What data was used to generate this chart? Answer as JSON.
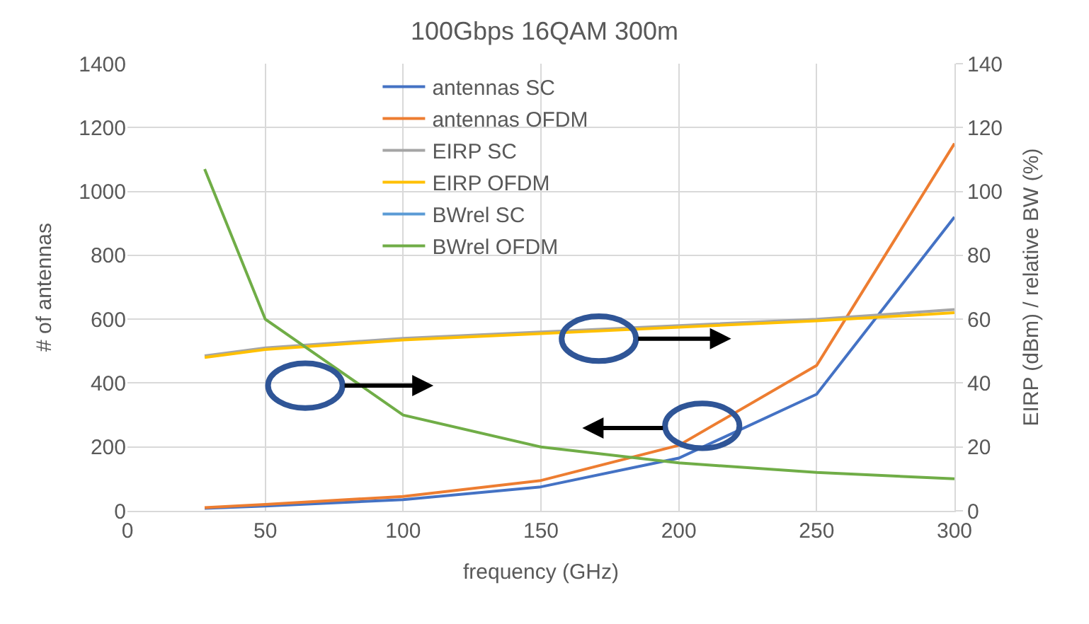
{
  "chart_data": {
    "type": "line",
    "title": "100Gbps 16QAM 300m",
    "xlabel": "frequency (GHz)",
    "ylabel": "# of antennas",
    "y2label": "EIRP (dBm) / relative BW (%)",
    "x": [
      28,
      50,
      100,
      150,
      200,
      250,
      300
    ],
    "series": [
      {
        "name": "antennas SC",
        "color": "#4472c4",
        "values": [
          8,
          15,
          35,
          75,
          165,
          365,
          920
        ]
      },
      {
        "name": "antennas OFDM",
        "color": "#ed7d31",
        "values": [
          10,
          20,
          45,
          95,
          205,
          455,
          1150
        ]
      },
      {
        "name": "EIRP SC",
        "color": "#a5a5a5",
        "axis": "y2",
        "values": [
          48.5,
          51,
          54,
          56,
          58,
          60,
          63
        ]
      },
      {
        "name": "EIRP OFDM",
        "color": "#ffc000",
        "axis": "y2",
        "values": [
          48,
          50.5,
          53.5,
          55.5,
          57.5,
          59.5,
          62
        ]
      },
      {
        "name": "BWrel SC",
        "color": "#5b9bd5",
        "axis": "y2",
        "values": [
          null,
          null,
          null,
          null,
          null,
          null,
          null
        ]
      },
      {
        "name": "BWrel OFDM",
        "color": "#70ad47",
        "axis": "y2",
        "values": [
          107,
          60,
          30,
          20,
          15,
          12,
          10
        ]
      }
    ],
    "xlim": [
      0,
      300
    ],
    "xticks": [
      0,
      50,
      100,
      150,
      200,
      250,
      300
    ],
    "ylim": [
      0,
      1400
    ],
    "yticks": [
      0,
      200,
      400,
      600,
      800,
      1000,
      1200,
      1400
    ],
    "y2lim": [
      0,
      140
    ],
    "y2ticks": [
      0,
      20,
      40,
      60,
      80,
      100,
      120,
      140
    ],
    "grid": true,
    "legend": "top",
    "marker": "none",
    "line_style": "solid"
  }
}
